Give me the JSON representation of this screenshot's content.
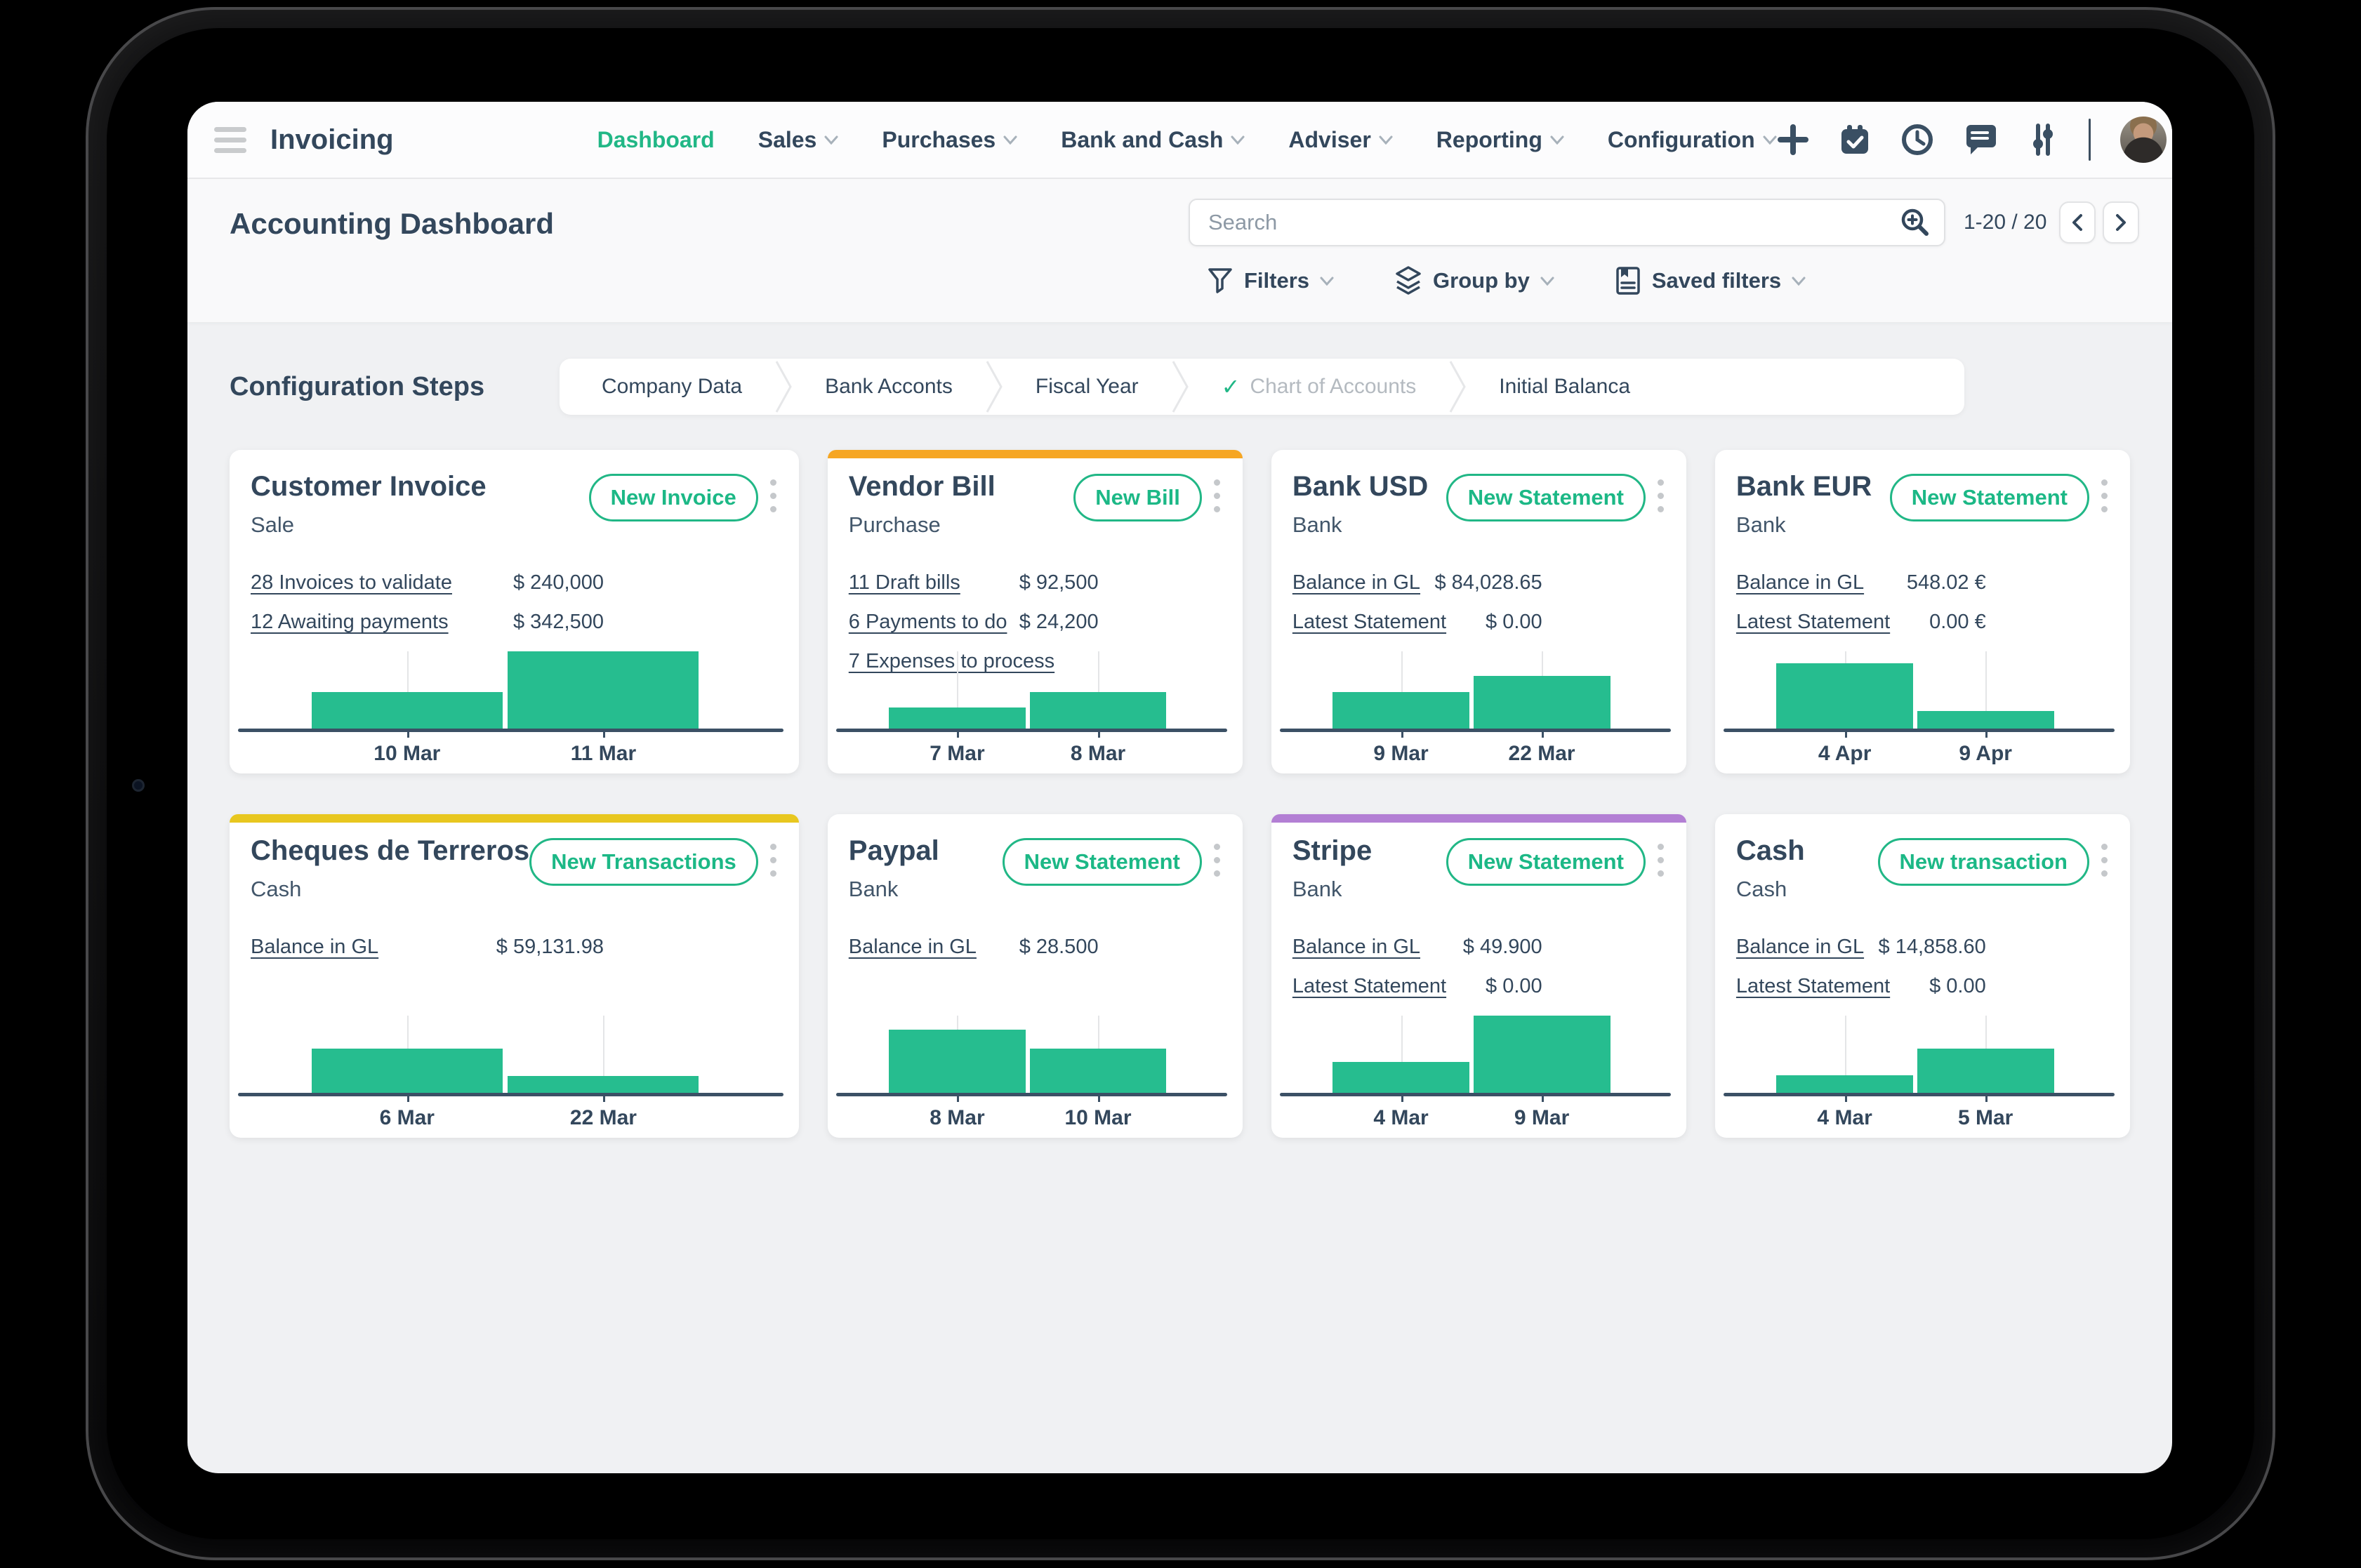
{
  "navbar": {
    "app_title": "Invoicing",
    "menu": [
      {
        "label": "Dashboard",
        "active": true,
        "dropdown": false
      },
      {
        "label": "Sales",
        "active": false,
        "dropdown": true
      },
      {
        "label": "Purchases",
        "active": false,
        "dropdown": true
      },
      {
        "label": "Bank and Cash",
        "active": false,
        "dropdown": true
      },
      {
        "label": "Adviser",
        "active": false,
        "dropdown": true
      },
      {
        "label": "Reporting",
        "active": false,
        "dropdown": true
      },
      {
        "label": "Configuration",
        "active": false,
        "dropdown": true
      }
    ],
    "systray_icons": [
      "plus-icon",
      "calendar-check-icon",
      "clock-icon",
      "messages-icon",
      "sliders-icon",
      "user-avatar"
    ]
  },
  "header": {
    "title": "Accounting Dashboard",
    "search_placeholder": "Search",
    "search_icon": "zoom-in-icon",
    "pager": "1-20 / 20",
    "filters_label": "Filters",
    "group_by_label": "Group by",
    "saved_filters_label": "Saved filters",
    "filter_icons": [
      "funnel-icon",
      "layers-icon",
      "saved-filters-icon"
    ]
  },
  "config_steps": {
    "heading": "Configuration Steps",
    "steps": [
      {
        "label": "Company Data",
        "done": false
      },
      {
        "label": "Bank Acconts",
        "done": false
      },
      {
        "label": "Fiscal Year",
        "done": false
      },
      {
        "label": "Chart of Accounts",
        "done": true
      },
      {
        "label": "Initial Balanca",
        "done": false
      }
    ]
  },
  "cards": [
    {
      "title": "Customer Invoice",
      "subtitle": "Sale",
      "button": "New Invoice",
      "accent": null,
      "rows": [
        {
          "label": "28 Invoices to validate",
          "amount": "$ 240,000"
        },
        {
          "label": "12 Awaiting payments",
          "amount": "$ 342,500"
        }
      ],
      "chart": {
        "type": "bar",
        "categories": [
          "10 Mar",
          "11 Mar"
        ],
        "values_pct": [
          47,
          100
        ]
      }
    },
    {
      "title": "Vendor Bill",
      "subtitle": "Purchase",
      "button": "New Bill",
      "accent": "#f6a623",
      "rows": [
        {
          "label": "11 Draft bills",
          "amount": "$ 92,500"
        },
        {
          "label": "6 Payments to do",
          "amount": "$ 24,200"
        },
        {
          "label": "7 Expenses to process",
          "amount": ""
        }
      ],
      "chart": {
        "type": "bar",
        "categories": [
          "7 Mar",
          "8 Mar"
        ],
        "values_pct": [
          27,
          47
        ]
      }
    },
    {
      "title": "Bank USD",
      "subtitle": "Bank",
      "button": "New Statement",
      "accent": null,
      "rows": [
        {
          "label": "Balance in GL",
          "amount": "$ 84,028.65"
        },
        {
          "label": "Latest Statement",
          "amount": "$ 0.00"
        }
      ],
      "chart": {
        "type": "bar",
        "categories": [
          "9 Mar",
          "22 Mar"
        ],
        "values_pct": [
          47,
          68
        ]
      }
    },
    {
      "title": "Bank EUR",
      "subtitle": "Bank",
      "button": "New Statement",
      "accent": null,
      "rows": [
        {
          "label": "Balance in GL",
          "amount": "548.02 €"
        },
        {
          "label": "Latest Statement",
          "amount": "0.00 €"
        }
      ],
      "chart": {
        "type": "bar",
        "categories": [
          "4 Apr",
          "9 Apr"
        ],
        "values_pct": [
          85,
          23
        ]
      }
    },
    {
      "title": "Cheques de Terreros",
      "subtitle": "Cash",
      "button": "New Transactions",
      "accent": "#e8c71f",
      "rows": [
        {
          "label": "Balance in GL",
          "amount": "$ 59,131.98"
        }
      ],
      "chart": {
        "type": "bar",
        "categories": [
          "6 Mar",
          "22 Mar"
        ],
        "values_pct": [
          57,
          22
        ]
      }
    },
    {
      "title": "Paypal",
      "subtitle": "Bank",
      "button": "New Statement",
      "accent": null,
      "rows": [
        {
          "label": "Balance in GL",
          "amount": "$ 28.500"
        }
      ],
      "chart": {
        "type": "bar",
        "categories": [
          "8 Mar",
          "10 Mar"
        ],
        "values_pct": [
          82,
          57
        ]
      }
    },
    {
      "title": "Stripe",
      "subtitle": "Bank",
      "button": "New Statement",
      "accent": "#b37fd4",
      "rows": [
        {
          "label": "Balance in GL",
          "amount": "$ 49.900"
        },
        {
          "label": "Latest Statement",
          "amount": "$ 0.00"
        }
      ],
      "chart": {
        "type": "bar",
        "categories": [
          "4 Mar",
          "9 Mar"
        ],
        "values_pct": [
          40,
          100
        ]
      }
    },
    {
      "title": "Cash",
      "subtitle": "Cash",
      "button": "New transaction",
      "accent": null,
      "rows": [
        {
          "label": "Balance in GL",
          "amount": "$ 14,858.60"
        },
        {
          "label": "Latest Statement",
          "amount": "$ 0.00"
        }
      ],
      "chart": {
        "type": "bar",
        "categories": [
          "4 Mar",
          "5 Mar"
        ],
        "values_pct": [
          23,
          57
        ]
      }
    }
  ],
  "colors": {
    "accent_green": "#21b786",
    "bar_green": "#26bd8f",
    "text_navy": "#33475c",
    "stripe_orange": "#f6a623",
    "stripe_yellow": "#e8c71f",
    "stripe_purple": "#b37fd4"
  }
}
